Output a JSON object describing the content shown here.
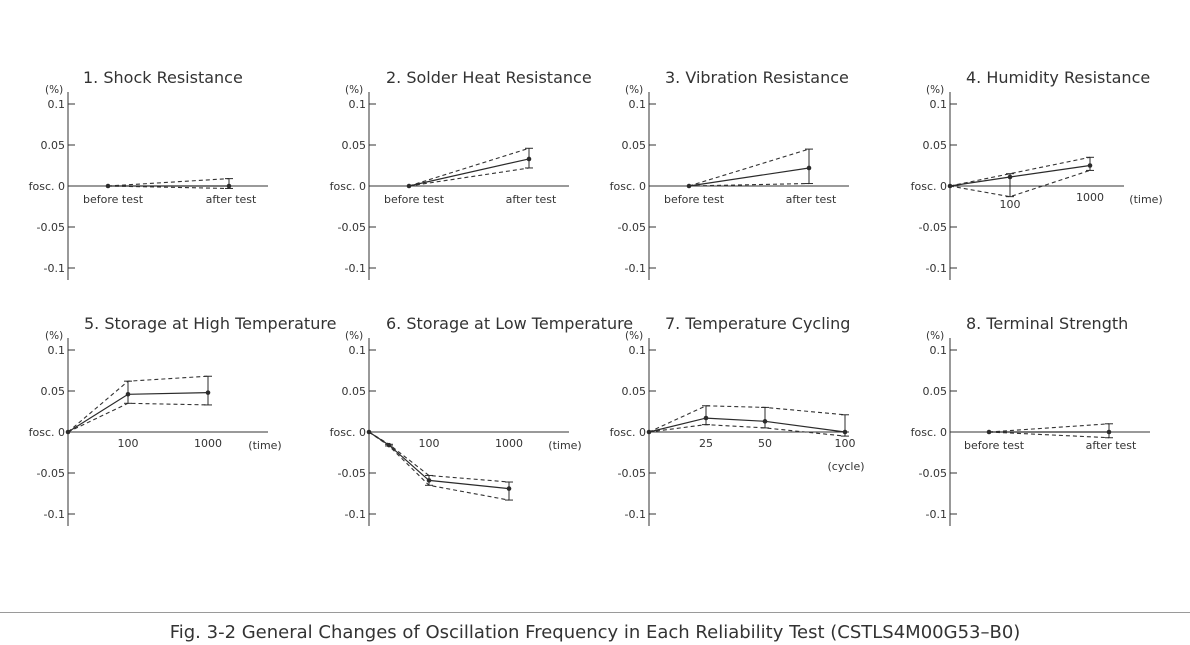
{
  "caption": "Fig. 3-2 General Changes of Oscillation Frequency in Each Reliability Test (CSTLS4M00G53–B0)",
  "chart_data": [
    {
      "type": "line",
      "title": "1. Shock Resistance",
      "ylabel": "(%)",
      "ylim": [
        -0.1,
        0.1
      ],
      "yticks": [
        {
          "v": 0.1,
          "label": "0.1"
        },
        {
          "v": 0.05,
          "label": "0.05"
        },
        {
          "v": 0,
          "label": "fosc. 0"
        },
        {
          "v": -0.05,
          "label": "-0.05"
        },
        {
          "v": -0.1,
          "label": "-0.1"
        }
      ],
      "categories": [
        "before test",
        "after test"
      ],
      "x_unit": "",
      "series": [
        {
          "values": [
            0,
            0.0
          ],
          "error": [
            [
              0,
              0
            ],
            [
              -0.003,
              0.009
            ]
          ]
        }
      ]
    },
    {
      "type": "line",
      "title": "2. Solder Heat Resistance",
      "ylabel": "(%)",
      "ylim": [
        -0.1,
        0.1
      ],
      "yticks": [
        {
          "v": 0.1,
          "label": "0.1"
        },
        {
          "v": 0.05,
          "label": "0.05"
        },
        {
          "v": 0,
          "label": "fosc. 0"
        },
        {
          "v": -0.05,
          "label": "-0.05"
        },
        {
          "v": -0.1,
          "label": "-0.1"
        }
      ],
      "categories": [
        "before test",
        "after test"
      ],
      "x_unit": "",
      "series": [
        {
          "values": [
            0,
            0.033
          ],
          "error": [
            [
              0,
              0
            ],
            [
              0.022,
              0.046
            ]
          ]
        }
      ]
    },
    {
      "type": "line",
      "title": "3. Vibration Resistance",
      "ylabel": "(%)",
      "ylim": [
        -0.1,
        0.1
      ],
      "yticks": [
        {
          "v": 0.1,
          "label": "0.1"
        },
        {
          "v": 0.05,
          "label": "0.05"
        },
        {
          "v": 0,
          "label": "fosc. 0"
        },
        {
          "v": -0.05,
          "label": "-0.05"
        },
        {
          "v": -0.1,
          "label": "-0.1"
        }
      ],
      "categories": [
        "before test",
        "after test"
      ],
      "x_unit": "",
      "series": [
        {
          "values": [
            0,
            0.022
          ],
          "error": [
            [
              0,
              0
            ],
            [
              0.003,
              0.045
            ]
          ]
        }
      ]
    },
    {
      "type": "line",
      "title": "4. Humidity Resistance",
      "ylabel": "(%)",
      "ylim": [
        -0.1,
        0.1
      ],
      "yticks": [
        {
          "v": 0.1,
          "label": "0.1"
        },
        {
          "v": 0.05,
          "label": "0.05"
        },
        {
          "v": 0,
          "label": "fosc. 0"
        },
        {
          "v": -0.05,
          "label": "-0.05"
        },
        {
          "v": -0.1,
          "label": "-0.1"
        }
      ],
      "categories": [
        "0",
        "100",
        "1000"
      ],
      "x_labels": [
        "",
        "100",
        "1000"
      ],
      "x_unit": "(time)",
      "series": [
        {
          "values": [
            0,
            0.011,
            0.025
          ],
          "error": [
            [
              0,
              0
            ],
            [
              -0.013,
              0.015
            ],
            [
              0.019,
              0.035
            ]
          ]
        }
      ]
    },
    {
      "type": "line",
      "title": "5. Storage at High Temperature",
      "ylabel": "(%)",
      "ylim": [
        -0.1,
        0.1
      ],
      "yticks": [
        {
          "v": 0.1,
          "label": "0.1"
        },
        {
          "v": 0.05,
          "label": "0.05"
        },
        {
          "v": 0,
          "label": "fosc. 0"
        },
        {
          "v": -0.05,
          "label": "-0.05"
        },
        {
          "v": -0.1,
          "label": "-0.1"
        }
      ],
      "categories": [
        "0",
        "100",
        "1000"
      ],
      "x_labels": [
        "",
        "100",
        "1000"
      ],
      "x_unit": "(time)",
      "series": [
        {
          "values": [
            0,
            0.046,
            0.048
          ],
          "error": [
            [
              0,
              0
            ],
            [
              0.035,
              0.062
            ],
            [
              0.033,
              0.068
            ]
          ]
        }
      ]
    },
    {
      "type": "line",
      "title": "6. Storage at Low Temperature",
      "ylabel": "(%)",
      "ylim": [
        -0.1,
        0.1
      ],
      "yticks": [
        {
          "v": 0.1,
          "label": "0.1"
        },
        {
          "v": 0.05,
          "label": "0.05"
        },
        {
          "v": 0,
          "label": "fosc. 0"
        },
        {
          "v": -0.05,
          "label": "-0.05"
        },
        {
          "v": -0.1,
          "label": "-0.1"
        }
      ],
      "categories": [
        "0",
        "25",
        "100",
        "1000"
      ],
      "x_labels": [
        "",
        "",
        "100",
        "1000"
      ],
      "x_unit": "(time)",
      "series": [
        {
          "values": [
            0,
            -0.016,
            -0.059,
            -0.069
          ],
          "error": [
            [
              0,
              0
            ],
            [
              -0.017,
              -0.015
            ],
            [
              -0.065,
              -0.053
            ],
            [
              -0.083,
              -0.061
            ]
          ]
        }
      ]
    },
    {
      "type": "line",
      "title": "7. Temperature Cycling",
      "ylabel": "(%)",
      "ylim": [
        -0.1,
        0.1
      ],
      "yticks": [
        {
          "v": 0.1,
          "label": "0.1"
        },
        {
          "v": 0.05,
          "label": "0.05"
        },
        {
          "v": 0,
          "label": "fosc. 0"
        },
        {
          "v": -0.05,
          "label": "-0.05"
        },
        {
          "v": -0.1,
          "label": "-0.1"
        }
      ],
      "categories": [
        "0",
        "25",
        "50",
        "100"
      ],
      "x_labels": [
        "",
        "25",
        "50",
        "100"
      ],
      "x_unit": "(cycle)",
      "series": [
        {
          "values": [
            0,
            0.017,
            0.013,
            0.0
          ],
          "error": [
            [
              0,
              0
            ],
            [
              0.009,
              0.032
            ],
            [
              0.005,
              0.03
            ],
            [
              -0.005,
              0.021
            ]
          ]
        }
      ]
    },
    {
      "type": "line",
      "title": "8. Terminal Strength",
      "ylabel": "(%)",
      "ylim": [
        -0.1,
        0.1
      ],
      "yticks": [
        {
          "v": 0.1,
          "label": "0.1"
        },
        {
          "v": 0.05,
          "label": "0.05"
        },
        {
          "v": 0,
          "label": "fosc. 0"
        },
        {
          "v": -0.05,
          "label": "-0.05"
        },
        {
          "v": -0.1,
          "label": "-0.1"
        }
      ],
      "categories": [
        "before test",
        "after test"
      ],
      "x_unit": "",
      "series": [
        {
          "values": [
            0,
            0.0
          ],
          "error": [
            [
              0,
              0
            ],
            [
              -0.007,
              0.01
            ]
          ]
        }
      ]
    }
  ]
}
